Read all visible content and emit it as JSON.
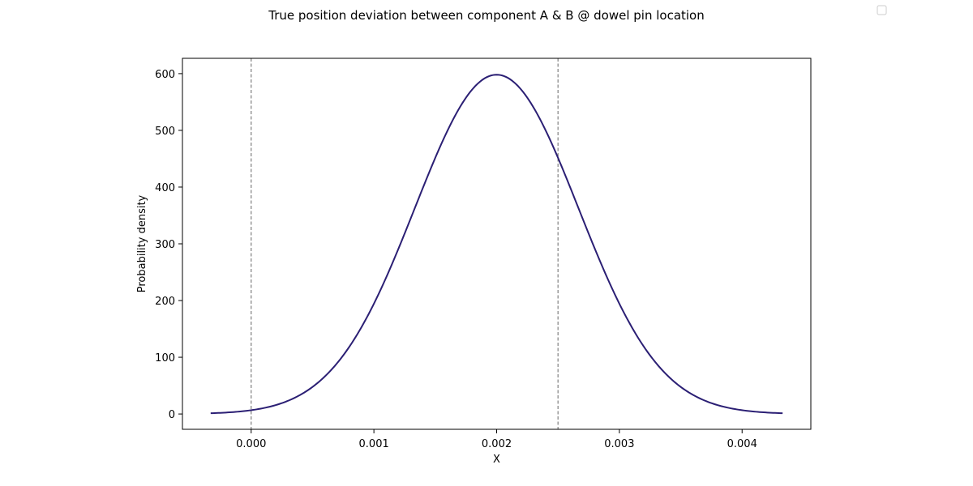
{
  "chart_data": {
    "type": "line",
    "title": "True position deviation between component A & B @ dowel pin location",
    "xlabel": "X",
    "ylabel": "Probability density",
    "xlim": [
      -0.00056,
      0.00456
    ],
    "ylim": [
      -27,
      627
    ],
    "xticks": [
      {
        "value": 0.0,
        "label": "0.000"
      },
      {
        "value": 0.001,
        "label": "0.001"
      },
      {
        "value": 0.002,
        "label": "0.002"
      },
      {
        "value": 0.003,
        "label": "0.003"
      },
      {
        "value": 0.004,
        "label": "0.004"
      }
    ],
    "yticks": [
      {
        "value": 0,
        "label": "0"
      },
      {
        "value": 100,
        "label": "100"
      },
      {
        "value": 200,
        "label": "200"
      },
      {
        "value": 300,
        "label": "300"
      },
      {
        "value": 400,
        "label": "400"
      },
      {
        "value": 500,
        "label": "500"
      },
      {
        "value": 600,
        "label": "600"
      }
    ],
    "grid": false,
    "legend": {
      "location": "top-right",
      "entries": []
    },
    "series": [
      {
        "name": "",
        "color": "#2b1f74",
        "distribution": "normal",
        "mean": 0.002,
        "std": 0.000667,
        "x_range": [
          -0.00033,
          0.00433
        ]
      }
    ],
    "vlines": [
      {
        "x": 0.0,
        "color": "#808080",
        "style": "dashed"
      },
      {
        "x": 0.0025,
        "color": "#808080",
        "style": "dashed"
      }
    ]
  }
}
